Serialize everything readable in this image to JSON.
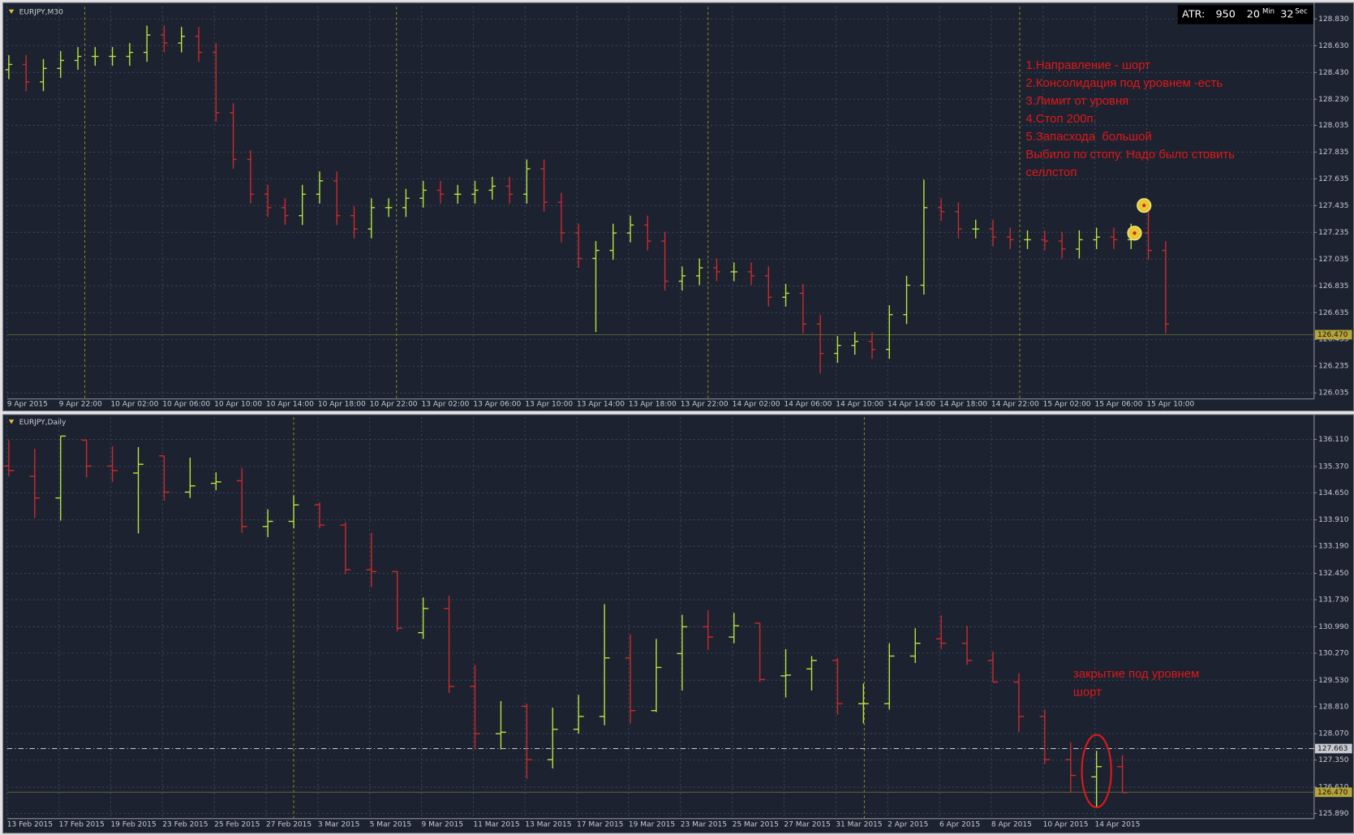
{
  "chart_data": [
    {
      "type": "ohlc",
      "symbol": "EURJPY,M30",
      "up_color": "#b8e63a",
      "down_color": "#cf2a2a",
      "open": [
        128.45,
        128.49,
        128.36,
        128.46,
        128.52,
        128.55,
        128.55,
        128.55,
        128.58,
        128.71,
        128.65,
        128.7,
        128.58,
        128.13,
        127.78,
        127.52,
        127.42,
        127.36,
        127.52,
        127.62,
        127.36,
        127.26,
        127.42,
        127.42,
        127.49,
        127.55,
        127.52,
        127.52,
        127.55,
        127.58,
        127.52,
        127.71,
        127.46,
        127.23,
        127.04,
        127.1,
        127.23,
        127.29,
        127.17,
        126.87,
        126.91,
        126.97,
        126.94,
        126.94,
        126.91,
        126.75,
        126.78,
        126.55,
        126.33,
        126.39,
        126.42,
        126.36,
        126.62,
        126.84,
        127.42,
        127.39,
        127.26,
        127.26,
        127.2,
        127.18,
        127.18,
        127.17,
        127.11,
        127.18,
        127.2,
        127.18,
        127.23,
        127.1
      ],
      "high": [
        128.56,
        128.56,
        128.53,
        128.59,
        128.62,
        128.62,
        128.62,
        128.65,
        128.78,
        128.78,
        128.77,
        128.77,
        128.65,
        128.2,
        127.85,
        127.59,
        127.49,
        127.59,
        127.69,
        127.69,
        127.43,
        127.49,
        127.49,
        127.56,
        127.62,
        127.62,
        127.59,
        127.62,
        127.65,
        127.65,
        127.78,
        127.78,
        127.53,
        127.3,
        127.17,
        127.3,
        127.36,
        127.36,
        127.24,
        126.98,
        127.04,
        127.04,
        127.01,
        127.01,
        126.98,
        126.85,
        126.85,
        126.62,
        126.46,
        126.49,
        126.49,
        126.69,
        126.91,
        127.63,
        127.49,
        127.46,
        127.33,
        127.33,
        127.27,
        127.25,
        127.25,
        127.24,
        127.25,
        127.27,
        127.27,
        127.3,
        127.44,
        127.17
      ],
      "low": [
        128.38,
        128.29,
        128.29,
        128.39,
        128.45,
        128.48,
        128.48,
        128.48,
        128.51,
        128.58,
        128.58,
        128.51,
        128.06,
        127.71,
        127.45,
        127.35,
        127.29,
        127.29,
        127.45,
        127.29,
        127.19,
        127.19,
        127.35,
        127.35,
        127.42,
        127.45,
        127.45,
        127.45,
        127.48,
        127.45,
        127.45,
        127.39,
        127.16,
        126.97,
        126.49,
        127.03,
        127.16,
        127.1,
        126.8,
        126.8,
        126.84,
        126.87,
        126.87,
        126.84,
        126.68,
        126.68,
        126.48,
        126.18,
        126.26,
        126.32,
        126.29,
        126.29,
        126.55,
        126.77,
        127.32,
        127.19,
        127.19,
        127.13,
        127.11,
        127.11,
        127.1,
        127.04,
        127.04,
        127.11,
        127.11,
        127.11,
        127.03,
        126.48
      ],
      "close": [
        128.49,
        128.36,
        128.46,
        128.52,
        128.55,
        128.55,
        128.55,
        128.58,
        128.71,
        128.65,
        128.7,
        128.58,
        128.13,
        127.78,
        127.52,
        127.42,
        127.36,
        127.52,
        127.62,
        127.36,
        127.26,
        127.42,
        127.42,
        127.49,
        127.55,
        127.52,
        127.52,
        127.55,
        127.58,
        127.52,
        127.71,
        127.46,
        127.23,
        127.04,
        127.1,
        127.23,
        127.29,
        127.17,
        126.87,
        126.91,
        126.97,
        126.94,
        126.94,
        126.91,
        126.75,
        126.78,
        126.55,
        126.33,
        126.39,
        126.42,
        126.36,
        126.62,
        126.84,
        127.42,
        127.39,
        127.26,
        127.26,
        127.2,
        127.18,
        127.18,
        127.17,
        127.11,
        127.18,
        127.2,
        127.18,
        127.23,
        127.1,
        126.55
      ],
      "ylim": [
        125.99,
        128.92
      ],
      "yticks": [
        {
          "value": 128.83,
          "label": "128.830"
        },
        {
          "value": 128.63,
          "label": "128.630"
        },
        {
          "value": 128.43,
          "label": "128.430"
        },
        {
          "value": 128.23,
          "label": "128.230"
        },
        128.035,
        127.835,
        127.635,
        127.435,
        127.235,
        127.035,
        126.835,
        126.635,
        126.435,
        126.235,
        126.035
      ],
      "xlabels": [
        "9 Apr 2015",
        "9 Apr 22:00",
        "10 Apr 02:00",
        "10 Apr 06:00",
        "10 Apr 10:00",
        "10 Apr 14:00",
        "10 Apr 18:00",
        "10 Apr 22:00",
        "13 Apr 02:00",
        "13 Apr 06:00",
        "13 Apr 10:00",
        "13 Apr 14:00",
        "13 Apr 18:00",
        "13 Apr 22:00",
        "14 Apr 02:00",
        "14 Apr 06:00",
        "14 Apr 10:00",
        "14 Apr 14:00",
        "14 Apr 18:00",
        "14 Apr 22:00",
        "15 Apr 02:00",
        "15 Apr 06:00",
        "15 Apr 10:00"
      ],
      "price_lines": [
        {
          "value": 126.47,
          "label": "126.470"
        }
      ],
      "annotations": [
        "1.Направление - шорт",
        "2.Консолидация под уровнем -есть",
        "3.Лимит от уровня",
        "4.Стоп 200п.",
        "5.Запасхода  большой",
        "Выбило по стопу. Надо было стовить",
        "селлстоп"
      ]
    },
    {
      "type": "ohlc",
      "symbol": "EURJPY,Daily",
      "up_color": "#b8e63a",
      "down_color": "#cf2a2a",
      "open": [
        135.38,
        135.1,
        134.51,
        136.09,
        135.38,
        135.19,
        135.66,
        134.67,
        134.91,
        134.98,
        133.73,
        133.87,
        134.32,
        133.77,
        132.55,
        132.5,
        130.83,
        131.49,
        129.36,
        128.07,
        128.82,
        127.36,
        128.19,
        128.54,
        130.14,
        128.7,
        130.26,
        130.99,
        130.71,
        131.09,
        129.65,
        129.84,
        130.07,
        128.89,
        128.89,
        130.19,
        130.66,
        130.54,
        130.07,
        129.48,
        128.54,
        127.36,
        126.89,
        127.17
      ],
      "high": [
        136.09,
        135.85,
        136.2,
        136.09,
        135.92,
        135.9,
        135.66,
        135.61,
        135.21,
        135.33,
        134.2,
        134.58,
        134.39,
        133.85,
        133.56,
        132.5,
        131.79,
        131.84,
        129.95,
        128.96,
        128.89,
        128.78,
        129.13,
        131.61,
        130.78,
        130.66,
        131.32,
        131.44,
        131.37,
        131.09,
        130.38,
        130.19,
        130.14,
        129.44,
        130.54,
        130.95,
        131.3,
        131.02,
        130.31,
        129.72,
        128.73,
        127.83,
        127.6,
        127.48
      ],
      "low": [
        135.1,
        133.96,
        133.89,
        135.07,
        134.95,
        133.54,
        134.44,
        134.51,
        134.72,
        133.56,
        133.44,
        133.68,
        133.68,
        132.43,
        132.08,
        130.87,
        130.66,
        129.18,
        127.64,
        127.64,
        126.84,
        127.12,
        128.07,
        128.3,
        128.35,
        128.66,
        129.25,
        130.36,
        130.54,
        129.48,
        129.06,
        129.25,
        128.59,
        128.35,
        128.73,
        130.0,
        130.38,
        129.95,
        129.48,
        128.11,
        127.24,
        126.46,
        126.06,
        126.46
      ],
      "close": [
        135.26,
        134.51,
        136.2,
        135.38,
        135.26,
        135.43,
        134.67,
        134.84,
        134.95,
        133.73,
        133.87,
        134.32,
        133.77,
        132.55,
        132.5,
        130.95,
        131.49,
        129.36,
        128.07,
        128.11,
        127.36,
        128.19,
        128.54,
        130.14,
        128.7,
        129.88,
        130.99,
        130.71,
        131.02,
        129.55,
        129.67,
        130.07,
        128.89,
        128.89,
        130.19,
        130.54,
        130.54,
        130.07,
        129.48,
        128.54,
        127.36,
        126.93,
        127.17,
        126.46
      ],
      "ylim": [
        125.75,
        136.72
      ],
      "yticks": [
        {
          "value": 136.11,
          "label": "136.110"
        },
        {
          "value": 135.37,
          "label": "135.370"
        },
        {
          "value": 134.65,
          "label": "134.650"
        },
        {
          "value": 133.91,
          "label": "133.910"
        },
        {
          "value": 133.19,
          "label": "133.190"
        },
        {
          "value": 132.45,
          "label": "132.450"
        },
        {
          "value": 131.73,
          "label": "131.730"
        },
        {
          "value": 130.99,
          "label": "130.990"
        },
        {
          "value": 130.27,
          "label": "130.270"
        },
        {
          "value": 129.53,
          "label": "129.530"
        },
        {
          "value": 128.81,
          "label": "128.810"
        },
        {
          "value": 128.07,
          "label": "128.070"
        },
        {
          "value": 127.35,
          "label": "127.350"
        },
        {
          "value": 126.61,
          "label": "126.610"
        },
        {
          "value": 125.89,
          "label": "125.890"
        }
      ],
      "xlabels": [
        "13 Feb 2015",
        "17 Feb 2015",
        "19 Feb 2015",
        "23 Feb 2015",
        "25 Feb 2015",
        "27 Feb 2015",
        "3 Mar 2015",
        "5 Mar 2015",
        "9 Mar 2015",
        "11 Mar 2015",
        "13 Mar 2015",
        "17 Mar 2015",
        "19 Mar 2015",
        "23 Mar 2015",
        "25 Mar 2015",
        "27 Mar 2015",
        "31 Mar 2015",
        "2 Apr 2015",
        "6 Apr 2015",
        "8 Apr 2015",
        "10 Apr 2015",
        "14 Apr 2015"
      ],
      "price_lines": [
        127.663,
        {
          "value": 126.47,
          "label": "126.470"
        }
      ],
      "annotations": [
        "закрытие под уровнем",
        "шорт"
      ]
    }
  ],
  "indicator": {
    "name": "ATR:",
    "value": 950,
    "minutes": 20,
    "minutes_unit": "Min",
    "seconds": 32,
    "seconds_unit": "Sec"
  }
}
